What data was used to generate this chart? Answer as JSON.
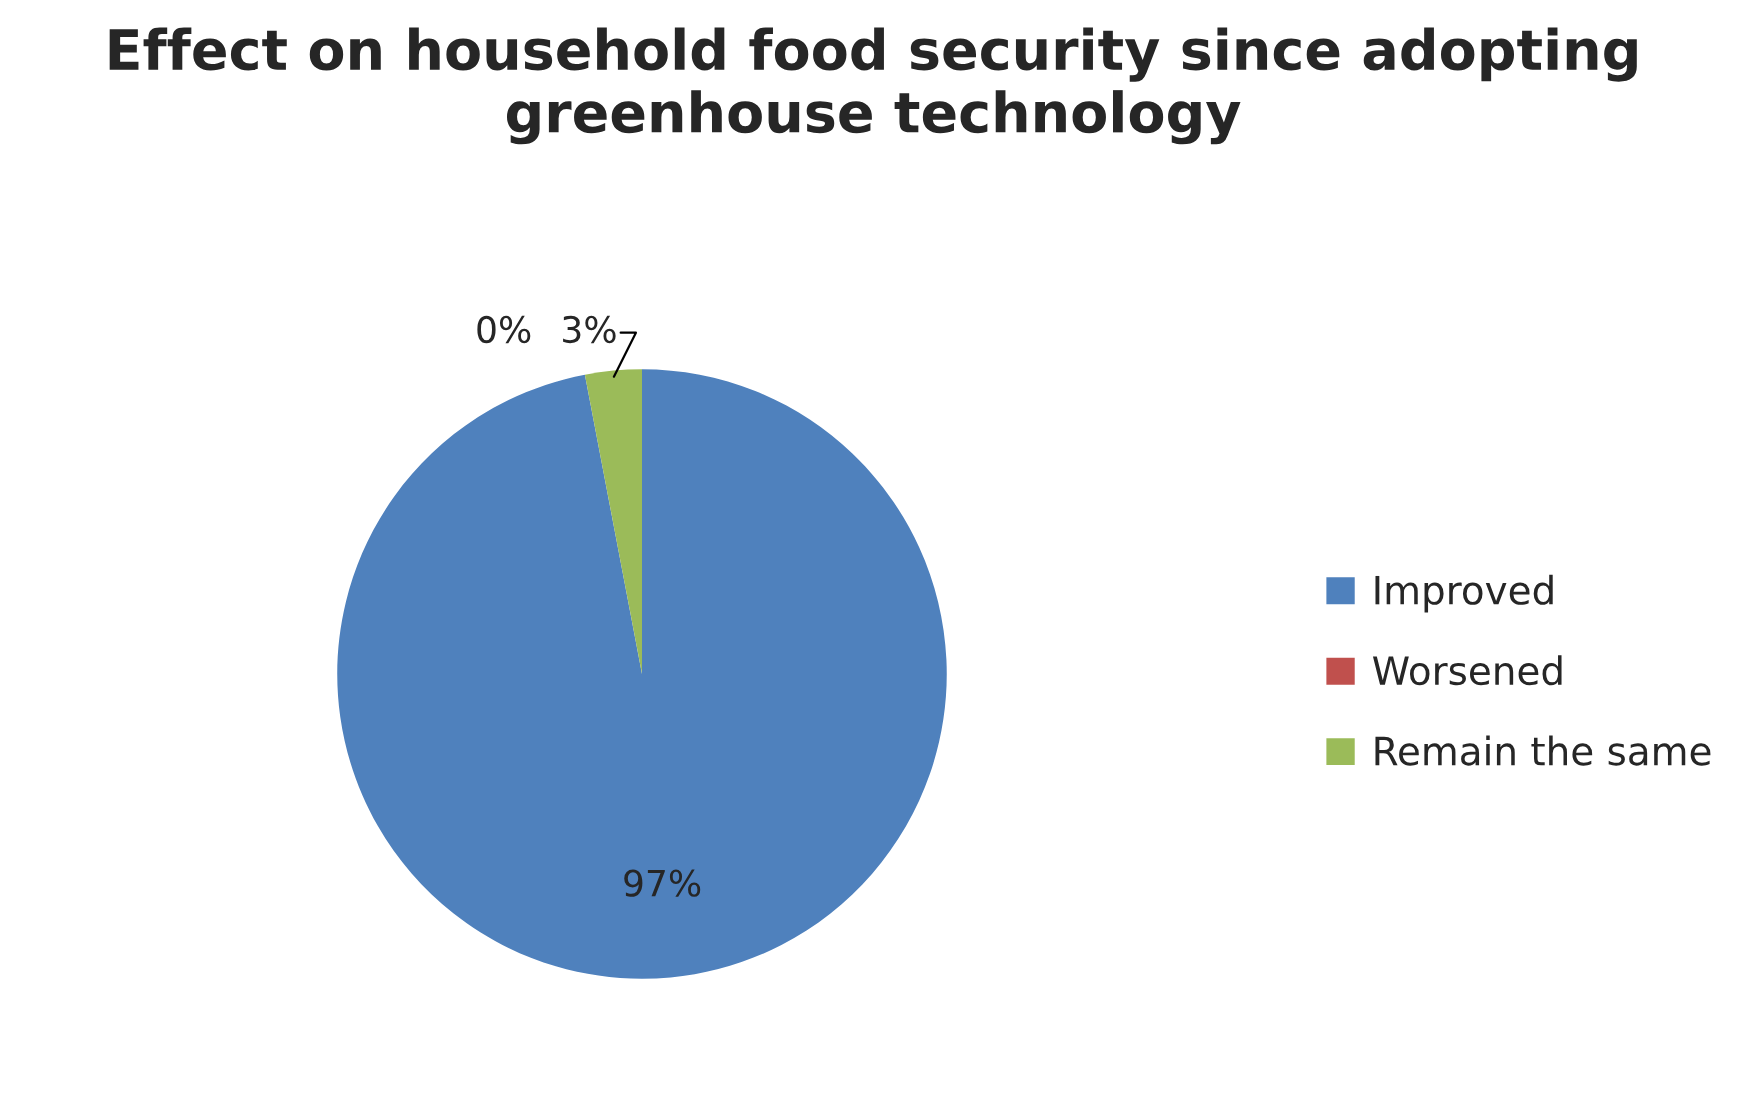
{
  "chart_data": {
    "type": "pie",
    "title": "Effect on household food security since adopting greenhouse technology",
    "categories": [
      "Improved",
      "Worsened",
      "Remain the same"
    ],
    "values": [
      97,
      0,
      3
    ],
    "colors": [
      "#4f81bd",
      "#c0504d",
      "#9bbb59"
    ],
    "value_labels": [
      "97%",
      "0%",
      "3%"
    ],
    "legend": "right"
  }
}
